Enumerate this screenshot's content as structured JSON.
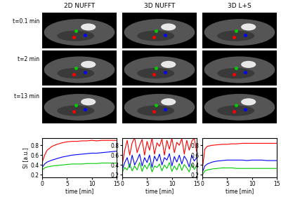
{
  "columns": [
    "2D NUFFT",
    "3D NUFFT",
    "3D L+S"
  ],
  "rows": [
    "t=0.1 min",
    "t=2 min",
    "t=13 min"
  ],
  "chart_data": [
    {
      "type": "line",
      "xlabel": "time [min]",
      "ylabel": "SI [a.u.]",
      "x": [
        0,
        0.5,
        1,
        2,
        3,
        4,
        5,
        6,
        7,
        8,
        9,
        10,
        11,
        12,
        13,
        14,
        15
      ],
      "xlim": [
        0,
        15
      ],
      "xticks": [
        0,
        5,
        10,
        15
      ],
      "ylim": [
        0.15,
        0.95
      ],
      "yticks": [
        0.2,
        0.4,
        0.6,
        0.8
      ],
      "series": [
        {
          "color": "#ff0000",
          "values": [
            0.45,
            0.6,
            0.7,
            0.78,
            0.82,
            0.85,
            0.87,
            0.88,
            0.88,
            0.89,
            0.89,
            0.9,
            0.89,
            0.9,
            0.9,
            0.9,
            0.9
          ]
        },
        {
          "color": "#0000ff",
          "values": [
            0.35,
            0.42,
            0.46,
            0.5,
            0.53,
            0.56,
            0.58,
            0.6,
            0.61,
            0.62,
            0.63,
            0.64,
            0.64,
            0.65,
            0.66,
            0.67,
            0.68
          ]
        },
        {
          "color": "#00cc00",
          "values": [
            0.3,
            0.34,
            0.36,
            0.38,
            0.39,
            0.4,
            0.41,
            0.42,
            0.42,
            0.42,
            0.43,
            0.43,
            0.43,
            0.44,
            0.44,
            0.44,
            0.44
          ]
        }
      ]
    },
    {
      "type": "line",
      "xlabel": "time [min]",
      "x": [
        0,
        0.5,
        1,
        1.5,
        2,
        2.5,
        3,
        3.5,
        4,
        4.5,
        5,
        5.5,
        6,
        6.5,
        7,
        7.5,
        8,
        8.5,
        9,
        9.5,
        10,
        10.5,
        11,
        11.5,
        12,
        12.5,
        13,
        13.5,
        14,
        14.5,
        15
      ],
      "xlim": [
        0,
        15
      ],
      "xticks": [
        0,
        5,
        10,
        15
      ],
      "ylim": [
        0.15,
        0.95
      ],
      "yticks": [
        0.2,
        0.4,
        0.6,
        0.8
      ],
      "series": [
        {
          "color": "#ff0000",
          "values": [
            0.4,
            0.7,
            0.9,
            0.6,
            0.85,
            0.95,
            0.65,
            0.8,
            0.92,
            0.6,
            0.88,
            0.7,
            0.95,
            0.62,
            0.85,
            0.78,
            0.93,
            0.6,
            0.9,
            0.72,
            0.95,
            0.65,
            0.86,
            0.8,
            0.94,
            0.62,
            0.9,
            0.7,
            0.88,
            0.95,
            0.66
          ]
        },
        {
          "color": "#0000ff",
          "values": [
            0.3,
            0.45,
            0.55,
            0.35,
            0.6,
            0.4,
            0.5,
            0.62,
            0.38,
            0.55,
            0.45,
            0.6,
            0.35,
            0.58,
            0.48,
            0.62,
            0.4,
            0.55,
            0.5,
            0.63,
            0.38,
            0.57,
            0.46,
            0.6,
            0.42,
            0.58,
            0.5,
            0.36,
            0.6,
            0.48,
            0.55
          ]
        },
        {
          "color": "#00cc00",
          "values": [
            0.25,
            0.35,
            0.3,
            0.42,
            0.28,
            0.38,
            0.3,
            0.45,
            0.27,
            0.4,
            0.32,
            0.44,
            0.26,
            0.38,
            0.35,
            0.42,
            0.28,
            0.4,
            0.33,
            0.45,
            0.27,
            0.38,
            0.3,
            0.43,
            0.29,
            0.41,
            0.34,
            0.26,
            0.42,
            0.31,
            0.38
          ]
        }
      ]
    },
    {
      "type": "line",
      "xlabel": "time [min]",
      "x": [
        0,
        0.5,
        1,
        2,
        3,
        4,
        5,
        6,
        7,
        8,
        9,
        10,
        11,
        12,
        13,
        14,
        15
      ],
      "xlim": [
        0,
        15
      ],
      "xticks": [
        0,
        5,
        10,
        15
      ],
      "ylim": [
        0.15,
        0.95
      ],
      "yticks": [
        0.2,
        0.4,
        0.6,
        0.8
      ],
      "series": [
        {
          "color": "#ff0000",
          "values": [
            0.3,
            0.72,
            0.78,
            0.8,
            0.81,
            0.82,
            0.82,
            0.83,
            0.83,
            0.84,
            0.84,
            0.84,
            0.84,
            0.84,
            0.84,
            0.84,
            0.84
          ]
        },
        {
          "color": "#0000ff",
          "values": [
            0.25,
            0.38,
            0.42,
            0.46,
            0.48,
            0.49,
            0.5,
            0.5,
            0.5,
            0.5,
            0.49,
            0.5,
            0.5,
            0.5,
            0.49,
            0.49,
            0.49
          ]
        },
        {
          "color": "#00cc00",
          "values": [
            0.2,
            0.28,
            0.3,
            0.32,
            0.33,
            0.34,
            0.34,
            0.34,
            0.33,
            0.33,
            0.33,
            0.33,
            0.33,
            0.33,
            0.33,
            0.33,
            0.33
          ]
        }
      ]
    }
  ]
}
